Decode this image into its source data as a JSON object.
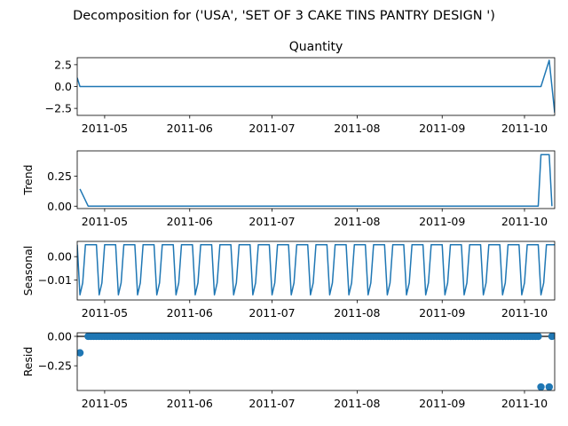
{
  "figure_title": "Decomposition for ('USA', 'SET OF 3 CAKE TINS PANTRY DESIGN ')",
  "chart_data": [
    {
      "type": "line",
      "title": "Quantity",
      "ylabel": "",
      "xlim": [
        "2011-04-21",
        "2011-10-12"
      ],
      "ylim": [
        -3.3,
        3.3
      ],
      "yticks": [
        -2.5,
        0.0,
        2.5
      ],
      "ytick_labels": [
        "−2.5",
        "0.0",
        "2.5"
      ],
      "x_tick_labels": [
        "2011-05",
        "2011-06",
        "2011-07",
        "2011-08",
        "2011-09",
        "2011-10"
      ],
      "grid": false,
      "color": "#1f77b4",
      "series": [
        {
          "points": [
            [
              "2011-04-21",
              1.0
            ],
            [
              "2011-04-22",
              0.0
            ],
            [
              "2011-10-07",
              0.0
            ],
            [
              "2011-10-10",
              3.0
            ],
            [
              "2011-10-12",
              -3.0
            ]
          ]
        }
      ]
    },
    {
      "type": "line",
      "title": "",
      "ylabel": "Trend",
      "xlim": [
        "2011-04-21",
        "2011-10-12"
      ],
      "ylim": [
        -0.02,
        0.46
      ],
      "yticks": [
        0.0,
        0.25
      ],
      "ytick_labels": [
        "0.00",
        "0.25"
      ],
      "x_tick_labels": [
        "2011-05",
        "2011-06",
        "2011-07",
        "2011-08",
        "2011-09",
        "2011-10"
      ],
      "grid": false,
      "color": "#1f77b4",
      "series": [
        {
          "points": [
            [
              "2011-04-22",
              0.143
            ],
            [
              "2011-04-25",
              0.0
            ],
            [
              "2011-10-06",
              0.0
            ],
            [
              "2011-10-07",
              0.429
            ],
            [
              "2011-10-10",
              0.429
            ],
            [
              "2011-10-11",
              0.0
            ]
          ]
        }
      ]
    },
    {
      "type": "line",
      "title": "",
      "ylabel": "Seasonal",
      "xlim": [
        "2011-04-21",
        "2011-10-12"
      ],
      "ylim": [
        -0.0185,
        0.0065
      ],
      "yticks": [
        -0.01,
        0.0
      ],
      "ytick_labels": [
        "−0.01",
        "0.00"
      ],
      "x_tick_labels": [
        "2011-05",
        "2011-06",
        "2011-07",
        "2011-08",
        "2011-09",
        "2011-10"
      ],
      "grid": false,
      "color": "#1f77b4",
      "period_days": 7,
      "pattern": [
        0.0051,
        -0.0163,
        -0.0112,
        0.0051,
        0.0051,
        0.0051,
        0.0051
      ]
    },
    {
      "type": "scatter",
      "title": "",
      "ylabel": "Resid",
      "xlim": [
        "2011-04-21",
        "2011-10-12"
      ],
      "ylim": [
        -0.46,
        0.03
      ],
      "yticks": [
        -0.25,
        0.0
      ],
      "ytick_labels": [
        "−0.25",
        "0.00"
      ],
      "x_tick_labels": [
        "2011-05",
        "2011-06",
        "2011-07",
        "2011-08",
        "2011-09",
        "2011-10"
      ],
      "grid": false,
      "baseline": 0.0,
      "color": "#1f77b4",
      "baseline_range": [
        "2011-04-25",
        "2011-10-06"
      ],
      "points": [
        [
          "2011-04-22",
          -0.14
        ],
        [
          "2011-10-07",
          -0.43
        ],
        [
          "2011-10-10",
          -0.43
        ],
        [
          "2011-10-11",
          0.0
        ]
      ]
    }
  ]
}
